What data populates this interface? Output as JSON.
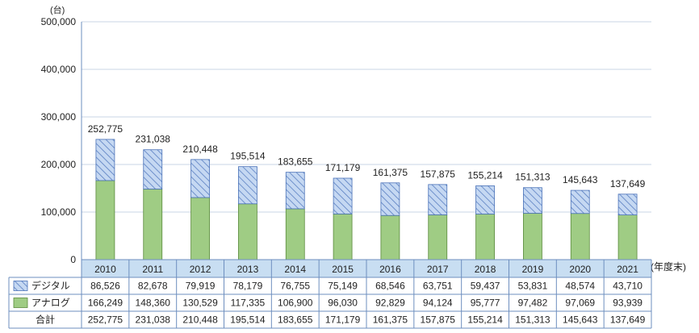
{
  "chart_data": {
    "type": "bar",
    "stacked": true,
    "y_unit": "(台)",
    "x_unit": "(年度末)",
    "ylim": [
      0,
      500000
    ],
    "y_ticks": [
      "0",
      "100,000",
      "200,000",
      "300,000",
      "400,000",
      "500,000"
    ],
    "y_tick_values": [
      0,
      100000,
      200000,
      300000,
      400000,
      500000
    ],
    "categories": [
      "2010",
      "2011",
      "2012",
      "2013",
      "2014",
      "2015",
      "2016",
      "2017",
      "2018",
      "2019",
      "2020",
      "2021"
    ],
    "series": [
      {
        "name": "アナログ",
        "values": [
          166249,
          148360,
          130529,
          117335,
          106900,
          96030,
          92829,
          94124,
          95777,
          97482,
          97069,
          93939
        ],
        "labels": [
          "166,249",
          "148,360",
          "130,529",
          "117,335",
          "106,900",
          "96,030",
          "92,829",
          "94,124",
          "95,777",
          "97,482",
          "97,069",
          "93,939"
        ],
        "color": "#9fcc84",
        "pattern": "solid"
      },
      {
        "name": "デジタル",
        "values": [
          86526,
          82678,
          79919,
          78179,
          76755,
          75149,
          68546,
          63751,
          59437,
          53831,
          48574,
          43710
        ],
        "labels": [
          "86,526",
          "82,678",
          "79,919",
          "78,179",
          "76,755",
          "75,149",
          "68,546",
          "63,751",
          "59,437",
          "53,831",
          "48,574",
          "43,710"
        ],
        "color": "#c5d8f2",
        "pattern": "hatch"
      }
    ],
    "totals_name": "合計",
    "totals": [
      252775,
      231038,
      210448,
      195514,
      183655,
      171179,
      161375,
      157875,
      155214,
      151313,
      145643,
      137649
    ],
    "total_labels": [
      "252,775",
      "231,038",
      "210,448",
      "195,514",
      "183,655",
      "171,179",
      "161,375",
      "157,875",
      "155,214",
      "151,313",
      "145,643",
      "137,649"
    ],
    "table_row_order": [
      "デジタル",
      "アナログ",
      "合計"
    ],
    "colors": {
      "hatch_line": "#5a7fc2",
      "outline": "#4a72b8",
      "analog_outline": "#5a8a3c",
      "header_bg": "#c8def2",
      "grid_border": "#6e8fbf"
    }
  }
}
